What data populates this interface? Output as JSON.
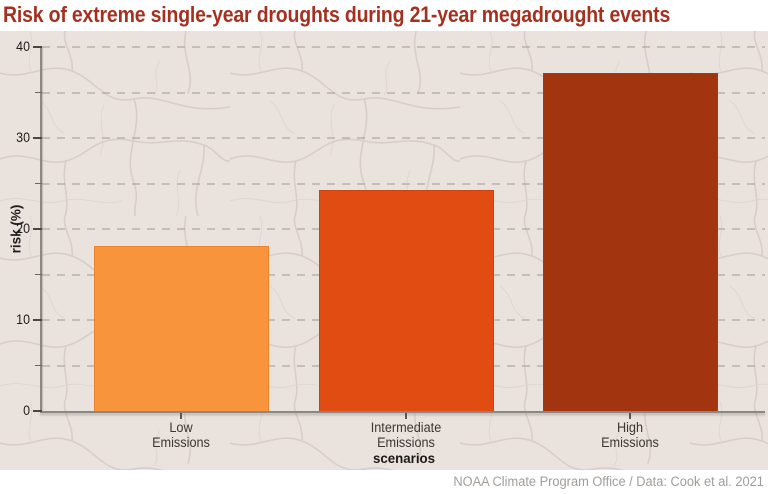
{
  "header": {
    "title": "Risk of extreme single-year droughts during 21-year megadrought events"
  },
  "footer": {
    "credit": "NOAA Climate Program Office / Data: Cook et al. 2021"
  },
  "colors": {
    "title_text": "#a43120",
    "plot_background": "#e9e2dd",
    "crack_lines": "#d7ccc5",
    "gridline": "#a89f9a",
    "axis_line": "#8a8784",
    "tick_text": "#1f1d1b",
    "footer_text": "#a29d99",
    "bars": [
      "#f8943c",
      "#e04c12",
      "#a2350f"
    ],
    "bar_edges": [
      "#ef8430",
      "#cf4210",
      "#b03418"
    ]
  },
  "chart_data": {
    "type": "bar",
    "title": "Risk of extreme single-year droughts during 21-year megadrought events",
    "categories": [
      "Low Emissions",
      "Intermediate Emissions",
      "High Emissions"
    ],
    "category_label_lines": [
      [
        "Low",
        "Emissions"
      ],
      [
        "Intermediate",
        "Emissions"
      ],
      [
        "High",
        "Emissions"
      ]
    ],
    "values": [
      18.1,
      24.3,
      37.1
    ],
    "bar_colors": [
      "#f8943c",
      "#e04c12",
      "#a2350f"
    ],
    "bar_edge_colors": [
      "#ef8430",
      "#cf4210",
      "#b03418"
    ],
    "xlabel": "scenarios",
    "ylabel": "risk (%)",
    "ylim": [
      0,
      40
    ],
    "yticks_major": [
      0,
      10,
      20,
      30,
      40
    ],
    "yticks_minor": [
      5,
      15,
      25,
      35
    ],
    "grid_values": [
      5,
      10,
      15,
      20,
      25,
      30,
      35,
      40
    ],
    "grid": "horizontal dashed",
    "legend": "none",
    "annotation": "credit line bottom-right: NOAA Climate Program Office / Data: Cook et al. 2021"
  }
}
